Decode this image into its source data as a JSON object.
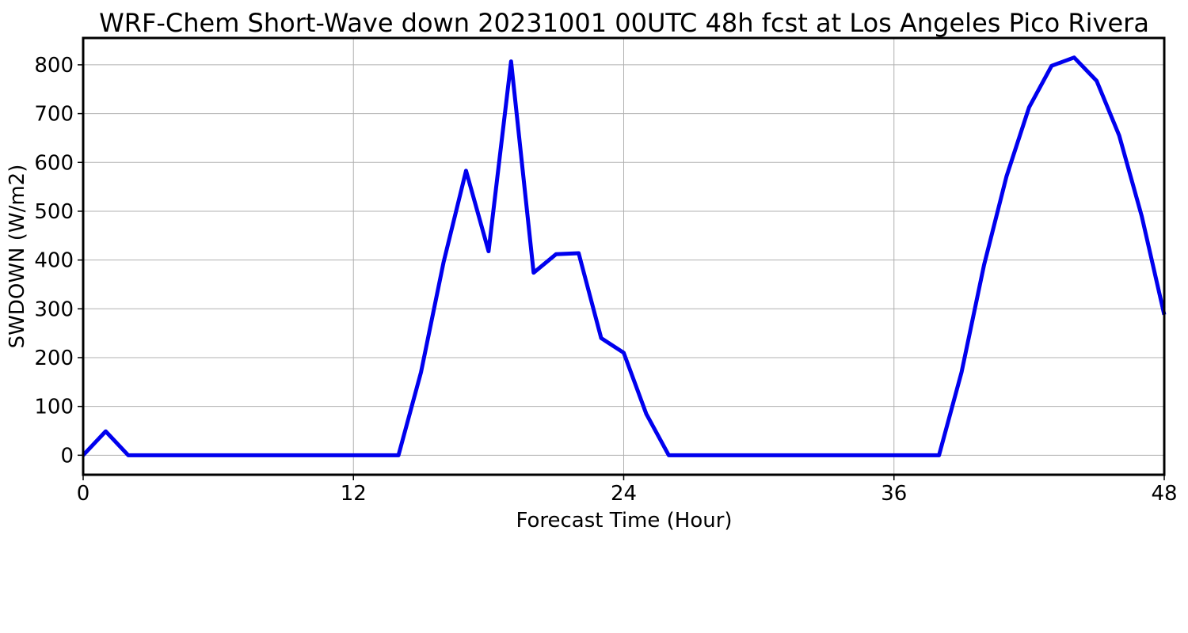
{
  "chart_data": {
    "type": "line",
    "title": "WRF-Chem Short-Wave down  20231001 00UTC 48h fcst at Los Angeles Pico Rivera",
    "xlabel": "Forecast Time (Hour)",
    "ylabel": "SWDOWN  (W/m2)",
    "xlim": [
      0,
      48
    ],
    "ylim": [
      -40,
      855
    ],
    "xticks": [
      0,
      12,
      24,
      36,
      48
    ],
    "yticks": [
      0,
      100,
      200,
      300,
      400,
      500,
      600,
      700,
      800
    ],
    "grid": true,
    "legend": "none",
    "series": [
      {
        "color": "#0000ee",
        "x": [
          0,
          1,
          2,
          3,
          4,
          5,
          6,
          7,
          8,
          9,
          10,
          11,
          12,
          13,
          14,
          15,
          16,
          17,
          18,
          19,
          20,
          21,
          22,
          23,
          24,
          25,
          26,
          27,
          28,
          29,
          30,
          31,
          32,
          33,
          34,
          35,
          36,
          37,
          38,
          39,
          40,
          41,
          42,
          43,
          44,
          45,
          46,
          47,
          48
        ],
        "y": [
          0,
          49,
          0,
          0,
          0,
          0,
          0,
          0,
          0,
          0,
          0,
          0,
          0,
          0,
          0,
          170,
          395,
          583,
          418,
          807,
          374,
          412,
          414,
          240,
          210,
          85,
          0,
          0,
          0,
          0,
          0,
          0,
          0,
          0,
          0,
          0,
          0,
          0,
          0,
          170,
          390,
          572,
          713,
          798,
          815,
          767,
          655,
          490,
          288
        ]
      }
    ]
  }
}
